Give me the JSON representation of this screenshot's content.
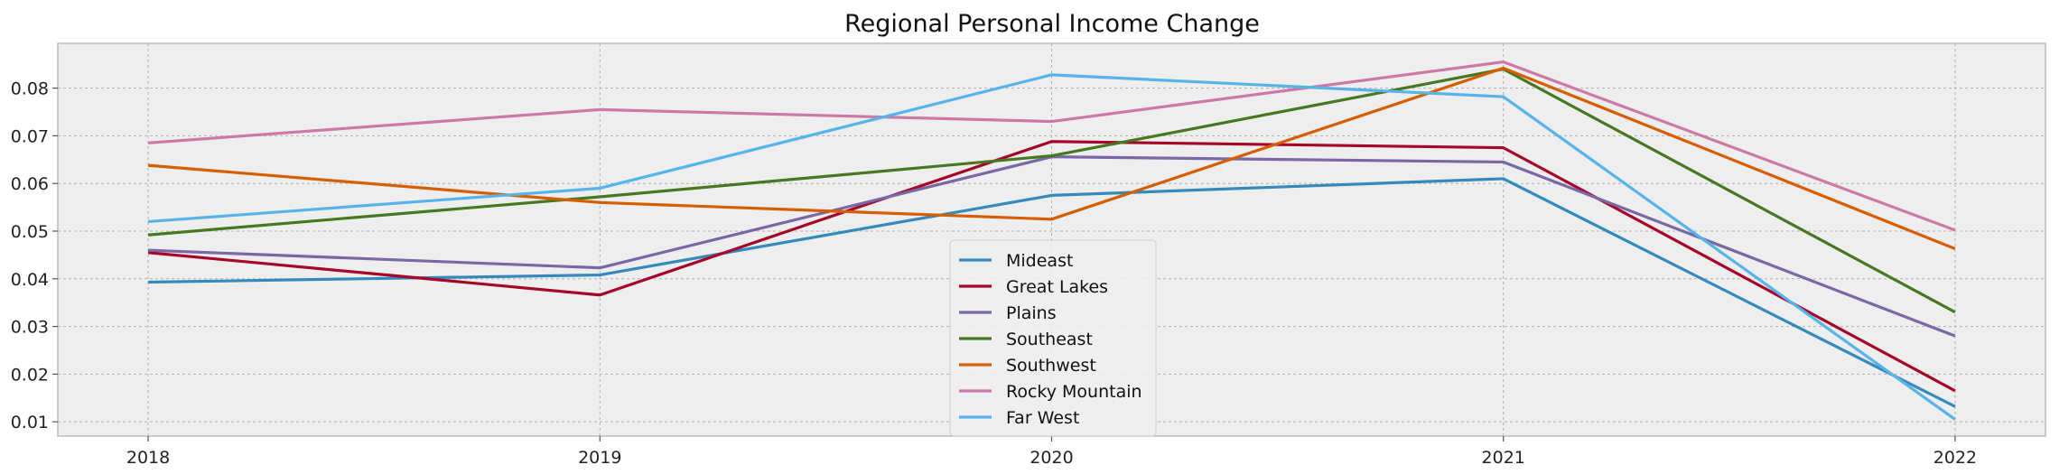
{
  "chart_data": {
    "type": "line",
    "title": "Regional Personal Income Change",
    "xlabel": "",
    "ylabel": "",
    "x": [
      "2018",
      "2019",
      "2020",
      "2021",
      "2022"
    ],
    "xlim": [
      2017.8,
      2022.2
    ],
    "ylim": [
      0.007,
      0.0894
    ],
    "yticks": [
      "0.01",
      "0.02",
      "0.03",
      "0.04",
      "0.05",
      "0.06",
      "0.07",
      "0.08"
    ],
    "grid": true,
    "legend_position": "lower center",
    "series": [
      {
        "name": "Mideast",
        "color": "#348ABD",
        "values": [
          0.0393,
          0.0408,
          0.0575,
          0.061,
          0.0132
        ]
      },
      {
        "name": "Great Lakes",
        "color": "#A60628",
        "values": [
          0.0455,
          0.0366,
          0.0688,
          0.0675,
          0.0165
        ]
      },
      {
        "name": "Plains",
        "color": "#7A68A6",
        "values": [
          0.046,
          0.0423,
          0.0656,
          0.0645,
          0.028
        ]
      },
      {
        "name": "Southeast",
        "color": "#467821",
        "values": [
          0.0492,
          0.0572,
          0.0658,
          0.084,
          0.033
        ]
      },
      {
        "name": "Southwest",
        "color": "#D55E00",
        "values": [
          0.0638,
          0.056,
          0.0525,
          0.0842,
          0.0463
        ]
      },
      {
        "name": "Rocky Mountain",
        "color": "#CC79A7",
        "values": [
          0.0685,
          0.0755,
          0.073,
          0.0855,
          0.0502
        ]
      },
      {
        "name": "Far West",
        "color": "#56B4E9",
        "values": [
          0.052,
          0.059,
          0.0828,
          0.0782,
          0.0105
        ]
      }
    ]
  }
}
